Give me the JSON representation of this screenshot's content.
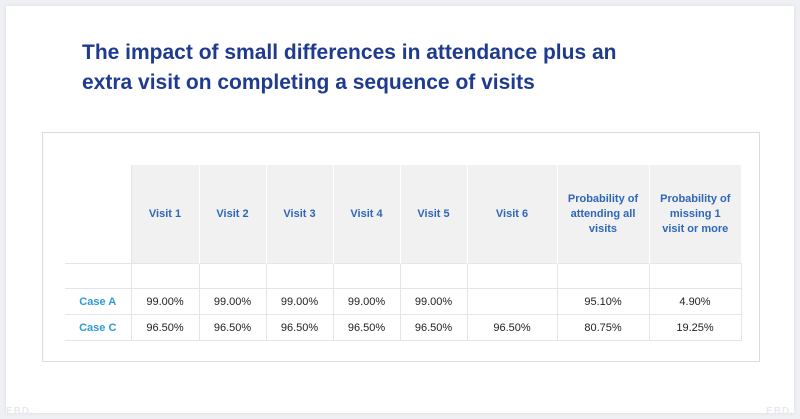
{
  "title": {
    "line1": "The impact of small differences in attendance plus an",
    "line2": "extra visit on completing a sequence of visits"
  },
  "table": {
    "headers": [
      "Visit 1",
      "Visit 2",
      "Visit 3",
      "Visit 4",
      "Visit 5",
      "Visit 6",
      "Probability of attending all visits",
      "Probability of missing 1 visit or more"
    ],
    "rows": [
      {
        "case": "Case A",
        "values": [
          "99.00%",
          "99.00%",
          "99.00%",
          "99.00%",
          "99.00%",
          "",
          "95.10%",
          "4.90%"
        ]
      },
      {
        "case": "Case C",
        "values": [
          "96.50%",
          "96.50%",
          "96.50%",
          "96.50%",
          "96.50%",
          "96.50%",
          "80.75%",
          "19.25%"
        ]
      }
    ]
  },
  "watermark": {
    "left": "EBD.",
    "right": "EBD."
  },
  "colors": {
    "title": "#1f3b8f",
    "header_text": "#2e67b8",
    "case_text": "#2e9bd6",
    "header_bg": "#f1f1f2"
  }
}
